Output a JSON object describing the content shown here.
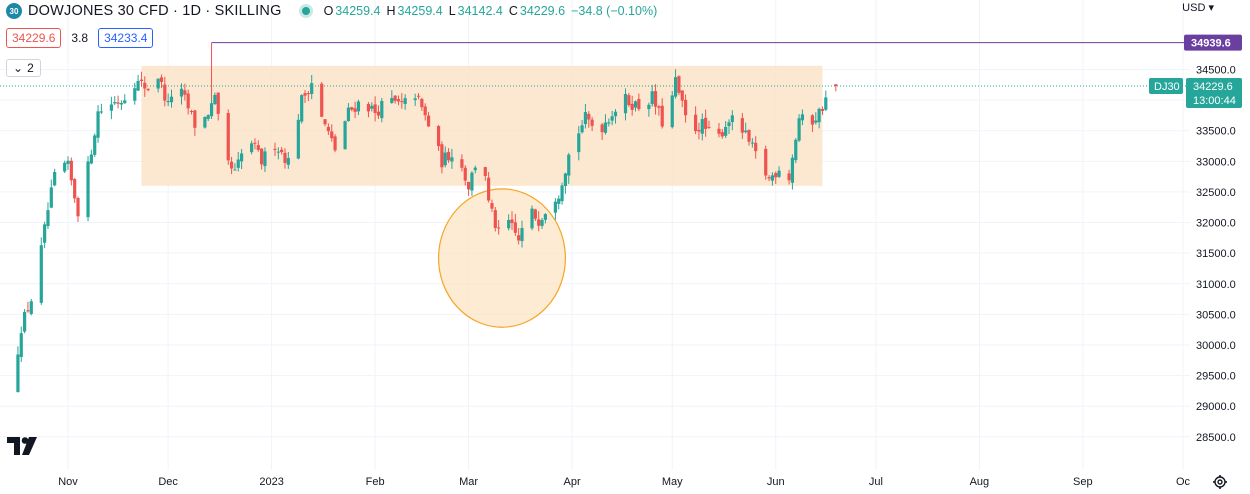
{
  "header": {
    "badge": "30",
    "title": "DOWJONES 30 CFD · 1D · SKILLING",
    "ohlc": [
      {
        "k": "O",
        "v": "34259.4"
      },
      {
        "k": "H",
        "v": "34259.4"
      },
      {
        "k": "L",
        "v": "34142.4"
      },
      {
        "k": "C",
        "v": "34229.6"
      }
    ],
    "change": "−34.8 (−0.10%)"
  },
  "quote": {
    "bid": "34229.6",
    "spread": "3.8",
    "ask": "34233.4"
  },
  "indicators_count": "2",
  "currency": "USD",
  "colors": {
    "up": "#26a69a",
    "down": "#ef5350",
    "rectFill": "#fbe3c8",
    "circleFill": "#fde3c0",
    "circleStroke": "#f5a623",
    "hline": "#6a3fa0"
  },
  "chart_data": {
    "type": "candlestick",
    "yticks": [
      28500,
      29000,
      29500,
      30000,
      30500,
      31000,
      31500,
      32000,
      32500,
      33000,
      33500,
      34000,
      34500
    ],
    "ytick_labels": [
      "28500.0",
      "29000.0",
      "29500.0",
      "30000.0",
      "30500.0",
      "31000.0",
      "31500.0",
      "32000.0",
      "32500.0",
      "33000.0",
      "33500.0",
      "34000.0",
      "34500.0"
    ],
    "xticks": [
      {
        "label": "Nov",
        "day": 0
      },
      {
        "label": "Dec",
        "day": 30
      },
      {
        "label": "2023",
        "day": 61
      },
      {
        "label": "Feb",
        "day": 92
      },
      {
        "label": "Mar",
        "day": 120
      },
      {
        "label": "Apr",
        "day": 151
      },
      {
        "label": "May",
        "day": 181
      },
      {
        "label": "Jun",
        "day": 212
      },
      {
        "label": "Jul",
        "day": 242
      },
      {
        "label": "Aug",
        "day": 273
      },
      {
        "label": "Sep",
        "day": 304
      },
      {
        "label": "Oc",
        "day": 334
      }
    ],
    "last_price": 34229.6,
    "last_label": "34229.6",
    "countdown": "13:00:44",
    "symbol_tag": "DJ30",
    "hline_value": 34939.6,
    "hline_label": "34939.6",
    "hline_start_day": 43,
    "range_box": {
      "day_start": 22,
      "day_end": 226,
      "price_top": 34560,
      "price_bottom": 32600
    },
    "circle": {
      "day_center": 130,
      "price_center": 31420,
      "radius_days": 19,
      "radius_price": 1130
    },
    "anchors": [
      [
        -17,
        29200
      ],
      [
        -14,
        30300
      ],
      [
        -10,
        30900
      ],
      [
        -6,
        32200
      ],
      [
        -3,
        33000
      ],
      [
        0,
        32900
      ],
      [
        3,
        32200
      ],
      [
        6,
        32900
      ],
      [
        9,
        33800
      ],
      [
        13,
        33950
      ],
      [
        16,
        34000
      ],
      [
        20,
        34300
      ],
      [
        24,
        34200
      ],
      [
        27,
        34400
      ],
      [
        30,
        33900
      ],
      [
        32,
        34300
      ],
      [
        35,
        34000
      ],
      [
        38,
        33600
      ],
      [
        41,
        33700
      ],
      [
        44,
        34000
      ],
      [
        47,
        33000
      ],
      [
        50,
        32800
      ],
      [
        54,
        33400
      ],
      [
        58,
        33000
      ],
      [
        62,
        33300
      ],
      [
        66,
        33000
      ],
      [
        70,
        34000
      ],
      [
        73,
        34300
      ],
      [
        76,
        33700
      ],
      [
        80,
        33200
      ],
      [
        84,
        33800
      ],
      [
        88,
        34000
      ],
      [
        92,
        33800
      ],
      [
        96,
        34000
      ],
      [
        100,
        33900
      ],
      [
        104,
        34100
      ],
      [
        108,
        33600
      ],
      [
        112,
        33000
      ],
      [
        116,
        33200
      ],
      [
        120,
        32600
      ],
      [
        124,
        33300
      ],
      [
        126,
        32300
      ],
      [
        129,
        31800
      ],
      [
        132,
        32000
      ],
      [
        135,
        31700
      ],
      [
        138,
        32200
      ],
      [
        141,
        32050
      ],
      [
        144,
        32300
      ],
      [
        147,
        32500
      ],
      [
        151,
        33300
      ],
      [
        155,
        33700
      ],
      [
        159,
        33500
      ],
      [
        163,
        33800
      ],
      [
        167,
        34000
      ],
      [
        171,
        33900
      ],
      [
        175,
        34050
      ],
      [
        179,
        33500
      ],
      [
        182,
        34300
      ],
      [
        186,
        33500
      ],
      [
        190,
        33600
      ],
      [
        194,
        33300
      ],
      [
        198,
        33700
      ],
      [
        202,
        33500
      ],
      [
        206,
        33100
      ],
      [
        210,
        32700
      ],
      [
        213,
        32900
      ],
      [
        216,
        32750
      ],
      [
        219,
        33700
      ],
      [
        222,
        33600
      ],
      [
        225,
        33800
      ],
      [
        228,
        34100
      ],
      [
        230,
        34229.6
      ]
    ]
  }
}
